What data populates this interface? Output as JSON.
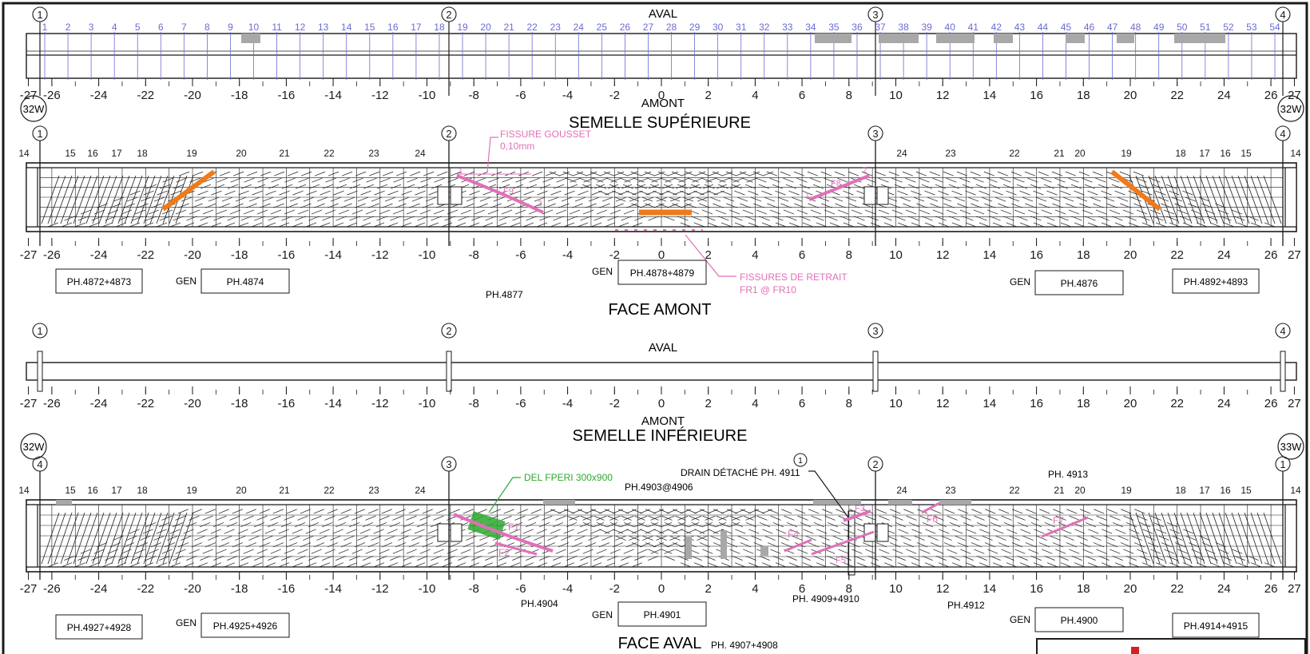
{
  "colors": {
    "ink": "#1a1a1a",
    "grid": "#6b6bd6",
    "pink": "#e070b8",
    "orange": "#f07a1a",
    "green": "#2ea82e",
    "shade": "#a8a8a8"
  },
  "top_labels": {
    "aval": "AVAL",
    "amont": "AMONT",
    "semelle_sup": "SEMELLE SUPÉRIEURE",
    "face_amont": "FACE AMONT",
    "aval2": "AVAL",
    "amont2": "AMONT",
    "semelle_inf": "SEMELLE INFÉRIEURE",
    "face_aval": "FACE AVAL"
  },
  "grid_numbers": [
    "1",
    "2",
    "3",
    "4",
    "5",
    "6",
    "7",
    "8",
    "9",
    "10",
    "11",
    "12",
    "13",
    "14",
    "15",
    "16",
    "17",
    "18",
    "19",
    "20",
    "21",
    "22",
    "23",
    "24",
    "25",
    "26",
    "27",
    "28",
    "29",
    "30",
    "31",
    "32",
    "33",
    "34",
    "35",
    "36",
    "37",
    "38",
    "39",
    "40",
    "41",
    "42",
    "43",
    "44",
    "45",
    "46",
    "47",
    "48",
    "49",
    "50",
    "51",
    "52",
    "53",
    "54"
  ],
  "scale_ticks": [
    "-27",
    "-26",
    "-24",
    "-22",
    "-20",
    "-18",
    "-16",
    "-14",
    "-12",
    "-10",
    "-8",
    "-6",
    "-4",
    "-2",
    "0",
    "2",
    "4",
    "6",
    "8",
    "10",
    "12",
    "14",
    "16",
    "18",
    "20",
    "22",
    "24",
    "26",
    "27"
  ],
  "axis_marks": {
    "a1": "1",
    "a2": "2",
    "a3": "3",
    "a4": "4",
    "w32": "32W",
    "w33": "33W"
  },
  "stiffener_left": [
    "14",
    "15",
    "16",
    "17",
    "18",
    "19",
    "20",
    "21",
    "22",
    "23",
    "24"
  ],
  "stiffener_right": [
    "24",
    "23",
    "22",
    "21",
    "20",
    "19",
    "18",
    "17",
    "16",
    "15",
    "14"
  ],
  "annotations_amont": {
    "fissure_gousset": "FISSURE GOUSSET",
    "fissure_width": "0,10mm",
    "f9": "F9",
    "f8": "F8",
    "n1": "1",
    "n2": "2",
    "fissures_retrait": "FISSURES DE RETRAIT",
    "fr_range": "FR1 @ FR10"
  },
  "photo_amont": {
    "p1": "PH.4872+4873",
    "gen1": "GEN",
    "p2": "PH.4874",
    "p3": "PH.4877",
    "gen2": "GEN",
    "p4": "PH.4878+4879",
    "gen3": "GEN",
    "p5": "PH.4876",
    "p6": "PH.4892+4893"
  },
  "annotations_aval": {
    "del": "DEL FPERI 300x900",
    "drain": "DRAIN DÉTACHÉ PH. 4911",
    "ph_range": "PH.4903@4906",
    "ph4913": "PH. 4913",
    "f1": "F1",
    "f2": "F2",
    "f4": "F4",
    "f5": "F5",
    "f6": "F6",
    "f7": "F7",
    "f3": "F3"
  },
  "photo_aval": {
    "p1": "PH.4927+4928",
    "gen1": "GEN",
    "p2": "PH.4925+4926",
    "p3": "PH.4904",
    "gen2": "GEN",
    "p4": "PH.4901",
    "p5": "PH. 4909+4910",
    "p6": "PH.4912",
    "gen3": "GEN",
    "p7": "PH.4900",
    "p8": "PH.4914+4915",
    "p9": "PH. 4907+4908"
  }
}
